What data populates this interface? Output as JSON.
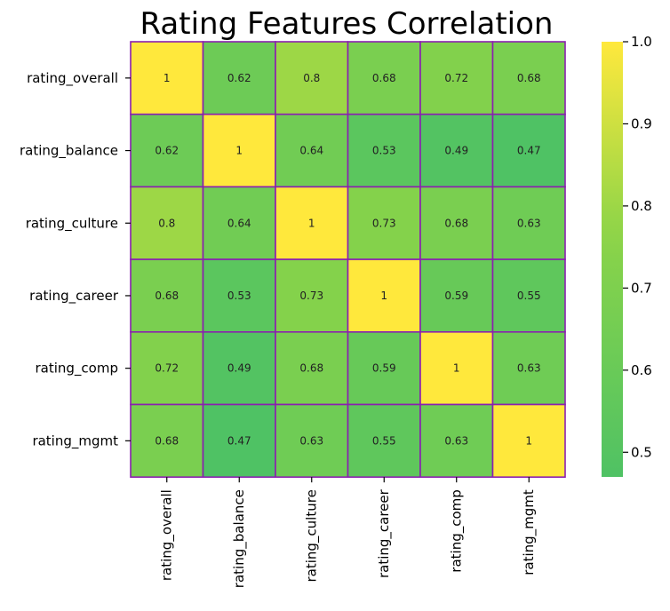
{
  "chart_data": {
    "type": "heatmap",
    "title": "Rating Features Correlation",
    "row_labels": [
      "rating_overall",
      "rating_balance",
      "rating_culture",
      "rating_career",
      "rating_comp",
      "rating_mgmt"
    ],
    "col_labels": [
      "rating_overall",
      "rating_balance",
      "rating_culture",
      "rating_career",
      "rating_comp",
      "rating_mgmt"
    ],
    "values": [
      [
        1,
        0.62,
        0.8,
        0.68,
        0.72,
        0.68
      ],
      [
        0.62,
        1,
        0.64,
        0.53,
        0.49,
        0.47
      ],
      [
        0.8,
        0.64,
        1,
        0.73,
        0.68,
        0.63
      ],
      [
        0.68,
        0.53,
        0.73,
        1,
        0.59,
        0.55
      ],
      [
        0.72,
        0.49,
        0.68,
        0.59,
        1,
        0.63
      ],
      [
        0.68,
        0.47,
        0.63,
        0.55,
        0.63,
        1
      ]
    ],
    "annotations": [
      [
        "1",
        "0.62",
        "0.8",
        "0.68",
        "0.72",
        "0.68"
      ],
      [
        "0.62",
        "1",
        "0.64",
        "0.53",
        "0.49",
        "0.47"
      ],
      [
        "0.8",
        "0.64",
        "1",
        "0.73",
        "0.68",
        "0.63"
      ],
      [
        "0.68",
        "0.53",
        "0.73",
        "1",
        "0.59",
        "0.55"
      ],
      [
        "0.72",
        "0.49",
        "0.68",
        "0.59",
        "1",
        "0.63"
      ],
      [
        "0.68",
        "0.47",
        "0.63",
        "0.55",
        "0.63",
        "1"
      ]
    ],
    "colorbar": {
      "range": [
        0.47,
        1.0
      ],
      "ticks": [
        0.5,
        0.6,
        0.7,
        0.8,
        0.9,
        1.0
      ],
      "tick_labels": [
        "0.5",
        "0.6",
        "0.7",
        "0.8",
        "0.9",
        "1.0"
      ]
    },
    "colors": {
      "low": "#4fc264",
      "high": "#ffe83c",
      "cell_border": "#8a1fb0",
      "text": "#222222"
    },
    "grid": false,
    "legend": "colorbar-right"
  }
}
